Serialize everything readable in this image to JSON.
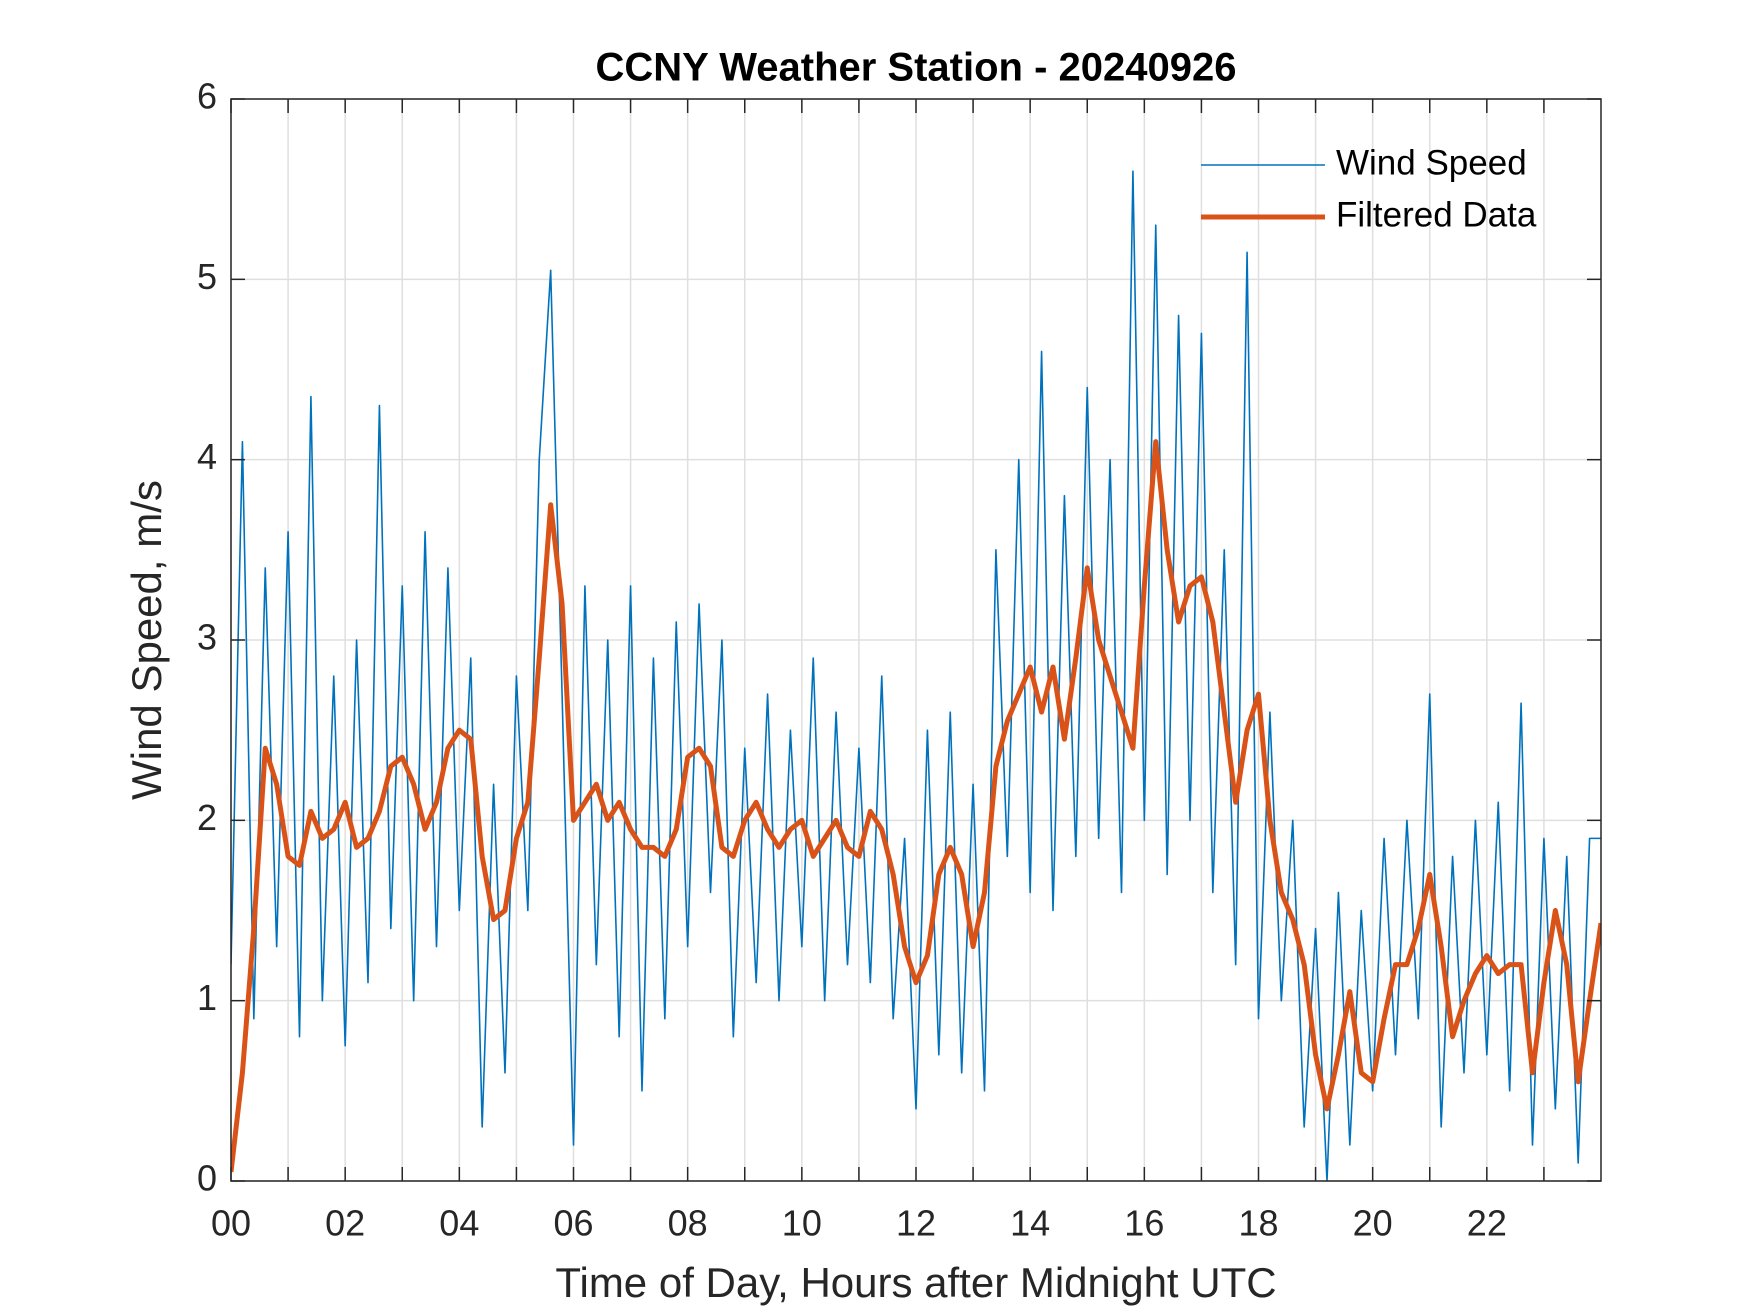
{
  "chart_data": {
    "type": "line",
    "title": "CCNY Weather Station - 20240926",
    "xlabel": "Time of Day, Hours after Midnight UTC",
    "ylabel": "Wind Speed, m/s",
    "x": [
      0,
      0.2,
      0.4,
      0.6,
      0.8,
      1,
      1.2,
      1.4,
      1.6,
      1.8,
      2,
      2.2,
      2.4,
      2.6,
      2.8,
      3,
      3.2,
      3.4,
      3.6,
      3.8,
      4,
      4.2,
      4.4,
      4.6,
      4.8,
      5,
      5.2,
      5.4,
      5.6,
      5.8,
      6,
      6.2,
      6.4,
      6.6,
      6.8,
      7,
      7.2,
      7.4,
      7.6,
      7.8,
      8,
      8.2,
      8.4,
      8.6,
      8.8,
      9,
      9.2,
      9.4,
      9.6,
      9.8,
      10,
      10.2,
      10.4,
      10.6,
      10.8,
      11,
      11.2,
      11.4,
      11.6,
      11.8,
      12,
      12.2,
      12.4,
      12.6,
      12.8,
      13,
      13.2,
      13.4,
      13.6,
      13.8,
      14,
      14.2,
      14.4,
      14.6,
      14.8,
      15,
      15.2,
      15.4,
      15.6,
      15.8,
      16,
      16.2,
      16.4,
      16.6,
      16.8,
      17,
      17.2,
      17.4,
      17.6,
      17.8,
      18,
      18.2,
      18.4,
      18.6,
      18.8,
      19,
      19.2,
      19.4,
      19.6,
      19.8,
      20,
      20.2,
      20.4,
      20.6,
      20.8,
      21,
      21.2,
      21.4,
      21.6,
      21.8,
      22,
      22.2,
      22.4,
      22.6,
      22.8,
      23,
      23.2,
      23.4,
      23.6,
      23.8,
      24
    ],
    "series": [
      {
        "name": "Wind Speed",
        "color": "#0072bd",
        "width": 1.6,
        "values": [
          1.2,
          4.1,
          0.9,
          3.4,
          1.3,
          3.6,
          0.8,
          4.35,
          1.0,
          2.8,
          0.75,
          3.0,
          1.1,
          4.3,
          1.4,
          3.3,
          1.0,
          3.6,
          1.3,
          3.4,
          1.5,
          2.9,
          0.3,
          2.2,
          0.6,
          2.8,
          1.5,
          4.0,
          5.05,
          2.7,
          0.2,
          3.3,
          1.2,
          3.0,
          0.8,
          3.3,
          0.5,
          2.9,
          0.9,
          3.1,
          1.3,
          3.2,
          1.6,
          3.0,
          0.8,
          2.4,
          1.1,
          2.7,
          1.0,
          2.5,
          1.3,
          2.9,
          1.0,
          2.6,
          1.2,
          2.4,
          1.1,
          2.8,
          0.9,
          1.9,
          0.4,
          2.5,
          0.7,
          2.6,
          0.6,
          2.2,
          0.5,
          3.5,
          1.8,
          4.0,
          1.6,
          4.6,
          1.5,
          3.8,
          1.8,
          4.4,
          1.9,
          4.0,
          1.6,
          5.6,
          2.0,
          5.3,
          1.7,
          4.8,
          2.0,
          4.7,
          1.6,
          3.5,
          1.2,
          5.15,
          0.9,
          2.6,
          1.0,
          2.0,
          0.3,
          1.4,
          0.0,
          1.6,
          0.2,
          1.5,
          0.5,
          1.9,
          0.7,
          2.0,
          0.9,
          2.7,
          0.3,
          1.8,
          0.6,
          2.0,
          0.7,
          2.1,
          0.5,
          2.65,
          0.2,
          1.9,
          0.4,
          1.8,
          0.1,
          1.9,
          1.9
        ]
      },
      {
        "name": "Filtered Data",
        "color": "#d95319",
        "width": 5,
        "values": [
          0.05,
          0.6,
          1.4,
          2.4,
          2.2,
          1.8,
          1.75,
          2.05,
          1.9,
          1.95,
          2.1,
          1.85,
          1.9,
          2.05,
          2.3,
          2.35,
          2.2,
          1.95,
          2.1,
          2.4,
          2.5,
          2.45,
          1.8,
          1.45,
          1.5,
          1.9,
          2.1,
          2.9,
          3.75,
          3.2,
          2.0,
          2.1,
          2.2,
          2.0,
          2.1,
          1.95,
          1.85,
          1.85,
          1.8,
          1.95,
          2.35,
          2.4,
          2.3,
          1.85,
          1.8,
          2.0,
          2.1,
          1.95,
          1.85,
          1.95,
          2.0,
          1.8,
          1.9,
          2.0,
          1.85,
          1.8,
          2.05,
          1.95,
          1.7,
          1.3,
          1.1,
          1.25,
          1.7,
          1.85,
          1.7,
          1.3,
          1.6,
          2.3,
          2.55,
          2.7,
          2.85,
          2.6,
          2.85,
          2.45,
          2.9,
          3.4,
          3.0,
          2.8,
          2.6,
          2.4,
          3.3,
          4.1,
          3.5,
          3.1,
          3.3,
          3.35,
          3.1,
          2.6,
          2.1,
          2.5,
          2.7,
          2.0,
          1.6,
          1.45,
          1.2,
          0.7,
          0.4,
          0.7,
          1.05,
          0.6,
          0.55,
          0.9,
          1.2,
          1.2,
          1.4,
          1.7,
          1.3,
          0.8,
          1.0,
          1.15,
          1.25,
          1.15,
          1.2,
          1.2,
          0.6,
          1.1,
          1.5,
          1.2,
          0.55,
          1.0,
          1.43
        ]
      }
    ],
    "xlim": [
      0,
      24
    ],
    "xticks": [
      {
        "value": 0,
        "label": "00"
      },
      {
        "value": 2,
        "label": "02"
      },
      {
        "value": 4,
        "label": "04"
      },
      {
        "value": 6,
        "label": "06"
      },
      {
        "value": 8,
        "label": "08"
      },
      {
        "value": 10,
        "label": "10"
      },
      {
        "value": 12,
        "label": "12"
      },
      {
        "value": 14,
        "label": "14"
      },
      {
        "value": 16,
        "label": "16"
      },
      {
        "value": 18,
        "label": "18"
      },
      {
        "value": 20,
        "label": "20"
      },
      {
        "value": 22,
        "label": "22"
      }
    ],
    "xminorticks": [
      1,
      3,
      5,
      7,
      9,
      11,
      13,
      15,
      17,
      19,
      21,
      23
    ],
    "ylim": [
      0,
      6
    ],
    "yticks": [
      0,
      1,
      2,
      3,
      4,
      5,
      6
    ],
    "grid": true,
    "legend": "northeast"
  }
}
